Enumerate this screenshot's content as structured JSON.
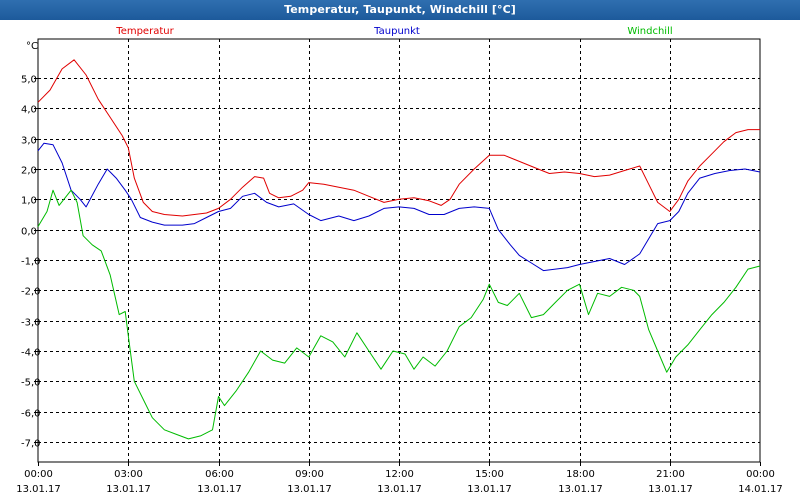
{
  "window": {
    "title": "Temperatur, Taupunkt, Windchill [°C]"
  },
  "chart_data": {
    "type": "line",
    "title": "Temperatur, Taupunkt, Windchill [°C]",
    "ylabel": "°C",
    "ylim": [
      -7.5,
      6.3
    ],
    "xlim": [
      0,
      24
    ],
    "grid": true,
    "legend_position": "top",
    "y_ticks": [
      {
        "value": 5,
        "label": "5,0"
      },
      {
        "value": 4,
        "label": "4,0"
      },
      {
        "value": 3,
        "label": "3,0"
      },
      {
        "value": 2,
        "label": "2,0"
      },
      {
        "value": 1,
        "label": "1,0"
      },
      {
        "value": 0,
        "label": "0,0"
      },
      {
        "value": -1,
        "label": "-1,0"
      },
      {
        "value": -2,
        "label": "-2,0"
      },
      {
        "value": -3,
        "label": "-3,0"
      },
      {
        "value": -4,
        "label": "-4,0"
      },
      {
        "value": -5,
        "label": "-5,0"
      },
      {
        "value": -6,
        "label": "-6,0"
      },
      {
        "value": -7,
        "label": "-7,0"
      }
    ],
    "x_ticks": [
      {
        "value": 0,
        "time": "00:00",
        "date": "13.01.17"
      },
      {
        "value": 3,
        "time": "03:00",
        "date": "13.01.17"
      },
      {
        "value": 6,
        "time": "06:00",
        "date": "13.01.17"
      },
      {
        "value": 9,
        "time": "09:00",
        "date": "13.01.17"
      },
      {
        "value": 12,
        "time": "12:00",
        "date": "13.01.17"
      },
      {
        "value": 15,
        "time": "15:00",
        "date": "13.01.17"
      },
      {
        "value": 18,
        "time": "18:00",
        "date": "13.01.17"
      },
      {
        "value": 21,
        "time": "21:00",
        "date": "13.01.17"
      },
      {
        "value": 24,
        "time": "00:00",
        "date": "14.01.17"
      }
    ],
    "series": [
      {
        "name": "Temperatur",
        "color": "#e00000",
        "points": [
          [
            0,
            4.2
          ],
          [
            0.4,
            4.6
          ],
          [
            0.8,
            5.3
          ],
          [
            1.2,
            5.6
          ],
          [
            1.6,
            5.1
          ],
          [
            2.0,
            4.3
          ],
          [
            2.4,
            3.7
          ],
          [
            2.8,
            3.1
          ],
          [
            3.0,
            2.7
          ],
          [
            3.2,
            1.7
          ],
          [
            3.5,
            0.9
          ],
          [
            3.8,
            0.6
          ],
          [
            4.2,
            0.5
          ],
          [
            4.8,
            0.45
          ],
          [
            5.2,
            0.5
          ],
          [
            5.6,
            0.55
          ],
          [
            6.0,
            0.7
          ],
          [
            6.4,
            1.0
          ],
          [
            6.8,
            1.4
          ],
          [
            7.2,
            1.75
          ],
          [
            7.5,
            1.7
          ],
          [
            7.7,
            1.2
          ],
          [
            8.0,
            1.05
          ],
          [
            8.4,
            1.1
          ],
          [
            8.8,
            1.3
          ],
          [
            9.0,
            1.55
          ],
          [
            9.5,
            1.5
          ],
          [
            10.0,
            1.4
          ],
          [
            10.5,
            1.3
          ],
          [
            11.0,
            1.1
          ],
          [
            11.5,
            0.9
          ],
          [
            12.0,
            1.0
          ],
          [
            12.5,
            1.05
          ],
          [
            13.0,
            0.95
          ],
          [
            13.4,
            0.8
          ],
          [
            13.7,
            1.0
          ],
          [
            14.0,
            1.5
          ],
          [
            14.5,
            2.0
          ],
          [
            15.0,
            2.45
          ],
          [
            15.5,
            2.45
          ],
          [
            16.0,
            2.25
          ],
          [
            16.5,
            2.05
          ],
          [
            17.0,
            1.85
          ],
          [
            17.5,
            1.9
          ],
          [
            18.0,
            1.85
          ],
          [
            18.5,
            1.75
          ],
          [
            19.0,
            1.8
          ],
          [
            19.5,
            1.95
          ],
          [
            20.0,
            2.1
          ],
          [
            20.3,
            1.5
          ],
          [
            20.6,
            0.9
          ],
          [
            21.0,
            0.6
          ],
          [
            21.3,
            1.0
          ],
          [
            21.6,
            1.6
          ],
          [
            22.0,
            2.1
          ],
          [
            22.4,
            2.5
          ],
          [
            22.8,
            2.9
          ],
          [
            23.2,
            3.2
          ],
          [
            23.6,
            3.3
          ],
          [
            24.0,
            3.3
          ]
        ]
      },
      {
        "name": "Taupunkt",
        "color": "#0000cc",
        "points": [
          [
            0,
            2.6
          ],
          [
            0.2,
            2.85
          ],
          [
            0.5,
            2.8
          ],
          [
            0.8,
            2.2
          ],
          [
            1.1,
            1.3
          ],
          [
            1.4,
            1.0
          ],
          [
            1.6,
            0.75
          ],
          [
            2.0,
            1.5
          ],
          [
            2.3,
            2.0
          ],
          [
            2.6,
            1.7
          ],
          [
            2.9,
            1.3
          ],
          [
            3.1,
            1.0
          ],
          [
            3.4,
            0.4
          ],
          [
            3.8,
            0.25
          ],
          [
            4.2,
            0.15
          ],
          [
            4.8,
            0.15
          ],
          [
            5.2,
            0.2
          ],
          [
            5.6,
            0.4
          ],
          [
            6.0,
            0.6
          ],
          [
            6.4,
            0.7
          ],
          [
            6.8,
            1.1
          ],
          [
            7.2,
            1.2
          ],
          [
            7.6,
            0.9
          ],
          [
            8.0,
            0.75
          ],
          [
            8.5,
            0.85
          ],
          [
            9.0,
            0.5
          ],
          [
            9.4,
            0.3
          ],
          [
            10.0,
            0.45
          ],
          [
            10.5,
            0.3
          ],
          [
            11.0,
            0.45
          ],
          [
            11.5,
            0.7
          ],
          [
            12.0,
            0.75
          ],
          [
            12.5,
            0.7
          ],
          [
            13.0,
            0.5
          ],
          [
            13.5,
            0.5
          ],
          [
            14.0,
            0.7
          ],
          [
            14.5,
            0.75
          ],
          [
            15.0,
            0.7
          ],
          [
            15.3,
            0.0
          ],
          [
            15.7,
            -0.5
          ],
          [
            16.0,
            -0.85
          ],
          [
            16.4,
            -1.1
          ],
          [
            16.8,
            -1.35
          ],
          [
            17.2,
            -1.3
          ],
          [
            17.6,
            -1.25
          ],
          [
            18.0,
            -1.15
          ],
          [
            18.5,
            -1.05
          ],
          [
            19.0,
            -0.95
          ],
          [
            19.5,
            -1.15
          ],
          [
            20.0,
            -0.8
          ],
          [
            20.3,
            -0.3
          ],
          [
            20.6,
            0.2
          ],
          [
            21.0,
            0.3
          ],
          [
            21.3,
            0.6
          ],
          [
            21.6,
            1.2
          ],
          [
            22.0,
            1.7
          ],
          [
            22.5,
            1.85
          ],
          [
            23.0,
            1.95
          ],
          [
            23.5,
            2.0
          ],
          [
            24.0,
            1.9
          ]
        ]
      },
      {
        "name": "Windchill",
        "color": "#00bb00",
        "points": [
          [
            0,
            0.1
          ],
          [
            0.3,
            0.6
          ],
          [
            0.5,
            1.3
          ],
          [
            0.7,
            0.8
          ],
          [
            1.1,
            1.3
          ],
          [
            1.3,
            0.9
          ],
          [
            1.5,
            -0.2
          ],
          [
            1.8,
            -0.5
          ],
          [
            2.1,
            -0.7
          ],
          [
            2.4,
            -1.5
          ],
          [
            2.7,
            -2.8
          ],
          [
            2.9,
            -2.7
          ],
          [
            3.0,
            -3.5
          ],
          [
            3.2,
            -5.0
          ],
          [
            3.5,
            -5.6
          ],
          [
            3.8,
            -6.2
          ],
          [
            4.2,
            -6.6
          ],
          [
            4.6,
            -6.75
          ],
          [
            5.0,
            -6.9
          ],
          [
            5.4,
            -6.8
          ],
          [
            5.8,
            -6.6
          ],
          [
            6.0,
            -5.5
          ],
          [
            6.2,
            -5.8
          ],
          [
            6.6,
            -5.3
          ],
          [
            7.0,
            -4.7
          ],
          [
            7.4,
            -4.0
          ],
          [
            7.8,
            -4.3
          ],
          [
            8.2,
            -4.4
          ],
          [
            8.6,
            -3.9
          ],
          [
            9.0,
            -4.2
          ],
          [
            9.4,
            -3.5
          ],
          [
            9.8,
            -3.7
          ],
          [
            10.2,
            -4.2
          ],
          [
            10.6,
            -3.4
          ],
          [
            11.0,
            -4.0
          ],
          [
            11.4,
            -4.6
          ],
          [
            11.8,
            -4.0
          ],
          [
            12.2,
            -4.1
          ],
          [
            12.5,
            -4.6
          ],
          [
            12.8,
            -4.2
          ],
          [
            13.2,
            -4.5
          ],
          [
            13.6,
            -4.0
          ],
          [
            14.0,
            -3.2
          ],
          [
            14.4,
            -2.9
          ],
          [
            14.8,
            -2.3
          ],
          [
            15.0,
            -1.8
          ],
          [
            15.3,
            -2.4
          ],
          [
            15.6,
            -2.5
          ],
          [
            16.0,
            -2.1
          ],
          [
            16.4,
            -2.9
          ],
          [
            16.8,
            -2.8
          ],
          [
            17.2,
            -2.4
          ],
          [
            17.6,
            -2.0
          ],
          [
            18.0,
            -1.8
          ],
          [
            18.3,
            -2.8
          ],
          [
            18.6,
            -2.1
          ],
          [
            19.0,
            -2.2
          ],
          [
            19.4,
            -1.9
          ],
          [
            19.8,
            -2.0
          ],
          [
            20.0,
            -2.2
          ],
          [
            20.3,
            -3.3
          ],
          [
            20.6,
            -4.0
          ],
          [
            20.9,
            -4.7
          ],
          [
            21.2,
            -4.2
          ],
          [
            21.6,
            -3.8
          ],
          [
            22.0,
            -3.3
          ],
          [
            22.4,
            -2.8
          ],
          [
            22.8,
            -2.4
          ],
          [
            23.2,
            -1.9
          ],
          [
            23.6,
            -1.3
          ],
          [
            24.0,
            -1.2
          ]
        ]
      }
    ]
  }
}
